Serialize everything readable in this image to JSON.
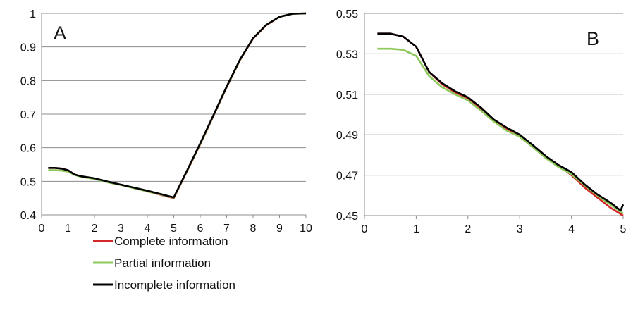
{
  "chart_data": [
    {
      "type": "line",
      "panel_label": "A",
      "xlim": [
        0,
        10
      ],
      "ylim": [
        0.4,
        1
      ],
      "xticks": [
        "0",
        "1",
        "2",
        "3",
        "4",
        "5",
        "6",
        "7",
        "8",
        "9",
        "10"
      ],
      "yticks": [
        "0.4",
        "0.5",
        "0.6",
        "0.7",
        "0.8",
        "0.9",
        "1"
      ],
      "grid": "horizontal",
      "series": [
        {
          "name": "Complete information",
          "color": "#d62728",
          "x": [
            0.25,
            0.5,
            0.75,
            1,
            1.25,
            1.5,
            2,
            2.5,
            3,
            3.5,
            4,
            4.5,
            5,
            5.5,
            6,
            6.5,
            7,
            7.5,
            8,
            8.5,
            9,
            9.5,
            10
          ],
          "y": [
            0.54,
            0.54,
            0.538,
            0.533,
            0.52,
            0.515,
            0.508,
            0.498,
            0.49,
            0.48,
            0.47,
            0.46,
            0.45,
            0.53,
            0.61,
            0.695,
            0.78,
            0.86,
            0.925,
            0.965,
            0.99,
            0.999,
            1
          ]
        },
        {
          "name": "Partial information",
          "color": "#8dc85a",
          "x": [
            0.25,
            0.5,
            0.75,
            1,
            1.25,
            1.5,
            2,
            2.5,
            3,
            3.5,
            4,
            4.5,
            5,
            5.5,
            6,
            6.5,
            7,
            7.5,
            8,
            8.5,
            9,
            9.5,
            10
          ],
          "y": [
            0.533,
            0.533,
            0.532,
            0.529,
            0.519,
            0.513,
            0.507,
            0.497,
            0.489,
            0.479,
            0.47,
            0.461,
            0.451,
            0.531,
            0.611,
            0.696,
            0.781,
            0.861,
            0.926,
            0.966,
            0.99,
            0.999,
            1
          ]
        },
        {
          "name": "Incomplete information",
          "color": "#000000",
          "x": [
            0.25,
            0.5,
            0.75,
            1,
            1.25,
            1.5,
            2,
            2.5,
            3,
            3.5,
            4,
            4.5,
            5,
            5.5,
            6,
            6.5,
            7,
            7.5,
            8,
            8.5,
            9,
            9.5,
            10
          ],
          "y": [
            0.54,
            0.54,
            0.538,
            0.533,
            0.52,
            0.515,
            0.509,
            0.499,
            0.49,
            0.481,
            0.472,
            0.462,
            0.452,
            0.532,
            0.613,
            0.697,
            0.782,
            0.862,
            0.926,
            0.966,
            0.99,
            0.999,
            1
          ]
        }
      ]
    },
    {
      "type": "line",
      "panel_label": "B",
      "xlim": [
        0,
        5
      ],
      "ylim": [
        0.45,
        0.55
      ],
      "xticks": [
        "0",
        "1",
        "2",
        "3",
        "4",
        "5"
      ],
      "yticks": [
        "0.45",
        "0.47",
        "0.49",
        "0.51",
        "0.53",
        "0.55"
      ],
      "grid": "horizontal",
      "series": [
        {
          "name": "Complete information",
          "color": "#d62728",
          "x": [
            0.25,
            0.5,
            0.75,
            1,
            1.25,
            1.5,
            1.75,
            2,
            2.25,
            2.5,
            2.75,
            3,
            3.25,
            3.5,
            3.75,
            4,
            4.25,
            4.5,
            4.75,
            5
          ],
          "y": [
            0.54,
            0.54,
            0.5385,
            0.5335,
            0.521,
            0.515,
            0.511,
            0.508,
            0.503,
            0.497,
            0.493,
            0.489,
            0.484,
            0.479,
            0.475,
            0.47,
            0.464,
            0.459,
            0.454,
            0.45
          ]
        },
        {
          "name": "Partial information",
          "color": "#8dc85a",
          "x": [
            0.25,
            0.5,
            0.75,
            1,
            1.25,
            1.5,
            1.75,
            2,
            2.25,
            2.5,
            2.75,
            3,
            3.25,
            3.5,
            3.75,
            4,
            4.25,
            4.5,
            4.75,
            5
          ],
          "y": [
            0.5325,
            0.5325,
            0.532,
            0.529,
            0.519,
            0.5135,
            0.51,
            0.507,
            0.502,
            0.4965,
            0.492,
            0.489,
            0.484,
            0.4785,
            0.474,
            0.4705,
            0.465,
            0.46,
            0.4555,
            0.451
          ]
        },
        {
          "name": "Incomplete information",
          "color": "#000000",
          "x": [
            0.25,
            0.5,
            0.75,
            1,
            1.25,
            1.5,
            1.75,
            2,
            2.25,
            2.5,
            2.75,
            3,
            3.25,
            3.5,
            3.75,
            4,
            4.25,
            4.5,
            4.75,
            4.95,
            5
          ],
          "y": [
            0.54,
            0.54,
            0.5385,
            0.5335,
            0.521,
            0.5155,
            0.5115,
            0.5085,
            0.5035,
            0.4975,
            0.4935,
            0.49,
            0.485,
            0.4795,
            0.475,
            0.4715,
            0.4655,
            0.4605,
            0.4565,
            0.4525,
            0.4555
          ]
        }
      ]
    }
  ],
  "legend": {
    "placement": "bottom-left",
    "items": [
      {
        "label": "Complete information",
        "color": "#d62728"
      },
      {
        "label": "Partial information",
        "color": "#8dc85a"
      },
      {
        "label": "Incomplete information",
        "color": "#000000"
      }
    ]
  }
}
